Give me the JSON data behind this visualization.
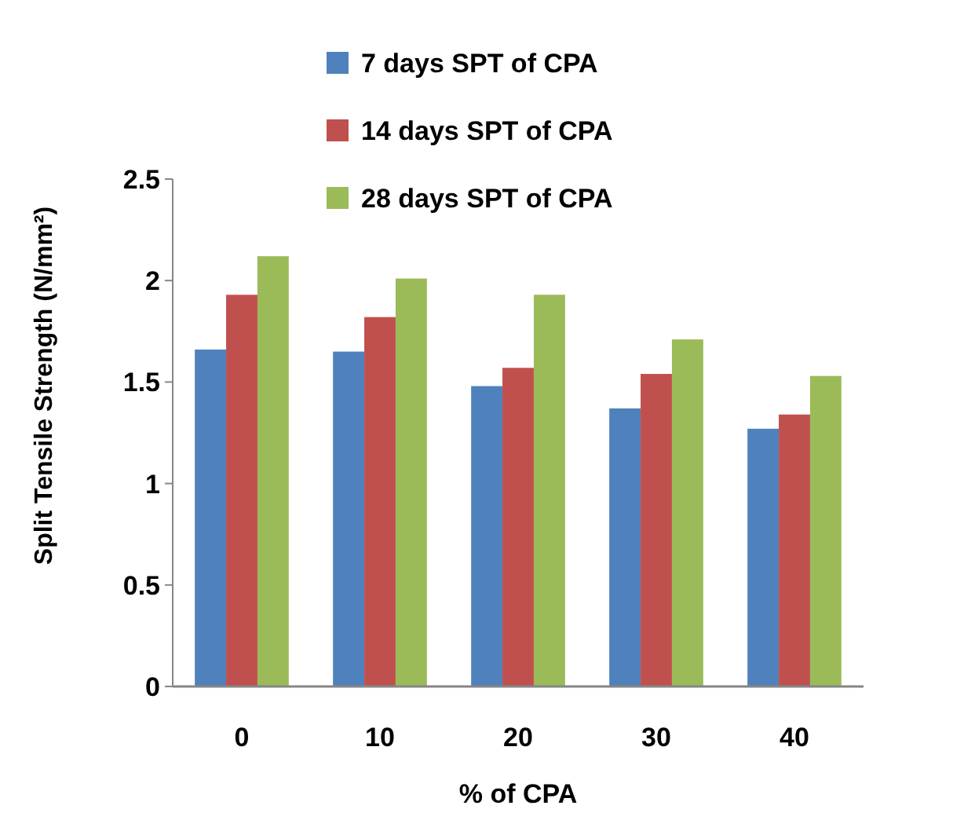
{
  "chart_data": {
    "type": "bar",
    "xlabel": "% of CPA",
    "ylabel": "Split Tensile Strength (N/mm²)",
    "categories": [
      "0",
      "10",
      "20",
      "30",
      "40"
    ],
    "series": [
      {
        "name": "7 days SPT of CPA",
        "color": "#4f81bd",
        "values": [
          1.66,
          1.65,
          1.48,
          1.37,
          1.27
        ]
      },
      {
        "name": "14 days SPT of CPA",
        "color": "#c0504d",
        "values": [
          1.93,
          1.82,
          1.57,
          1.54,
          1.34
        ]
      },
      {
        "name": "28 days SPT of CPA",
        "color": "#9bbb59",
        "values": [
          2.12,
          2.01,
          1.93,
          1.71,
          1.53
        ]
      }
    ],
    "ylim": [
      0,
      2.5
    ],
    "yticks": [
      0,
      0.5,
      1,
      1.5,
      2,
      2.5
    ],
    "grid": false,
    "legend": "top"
  }
}
